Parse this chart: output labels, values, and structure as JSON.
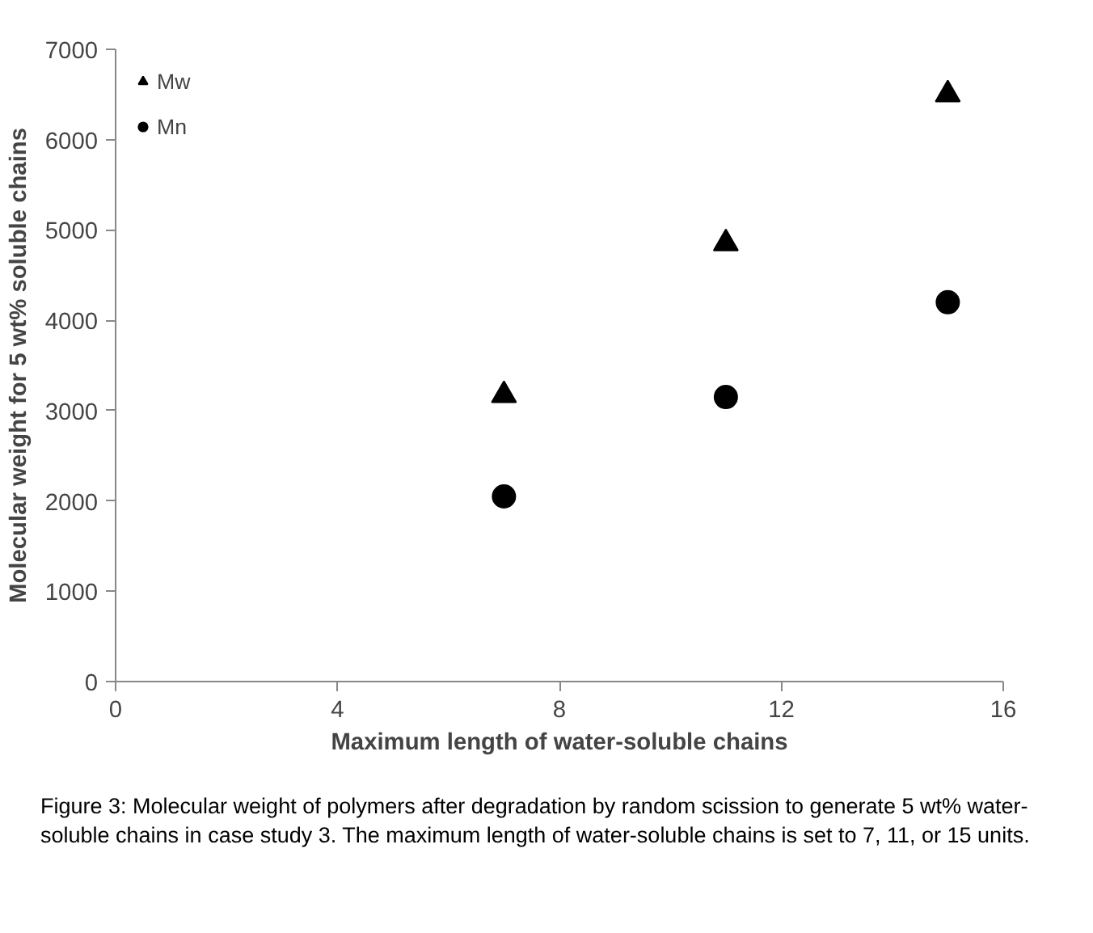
{
  "chart_data": {
    "type": "scatter",
    "xlabel": "Maximum length of water-soluble chains",
    "ylabel": "Molecular weight for 5 wt% soluble chains",
    "x": [
      7,
      11,
      15
    ],
    "series": [
      {
        "name": "Mw",
        "color": "#000000",
        "marker": "triangle",
        "values": [
          3170,
          4850,
          6500
        ]
      },
      {
        "name": "Mn",
        "color": "#000000",
        "marker": "circle",
        "values": [
          2050,
          3150,
          4200
        ]
      }
    ],
    "xlim": [
      0,
      16
    ],
    "xticks": [
      0,
      4,
      8,
      12,
      16
    ],
    "ylim": [
      0,
      7000
    ],
    "yticks": [
      0,
      1000,
      2000,
      3000,
      4000,
      5000,
      6000,
      7000
    ],
    "grid": false,
    "legend": "top left",
    "annotations": [
      "Figure 3: Molecular weight of polymers after degradation by random scission to generate 5 wt% water-soluble chains in case study 3. The maximum length of water-soluble chains is set to 7, 11, or 15 units."
    ]
  }
}
